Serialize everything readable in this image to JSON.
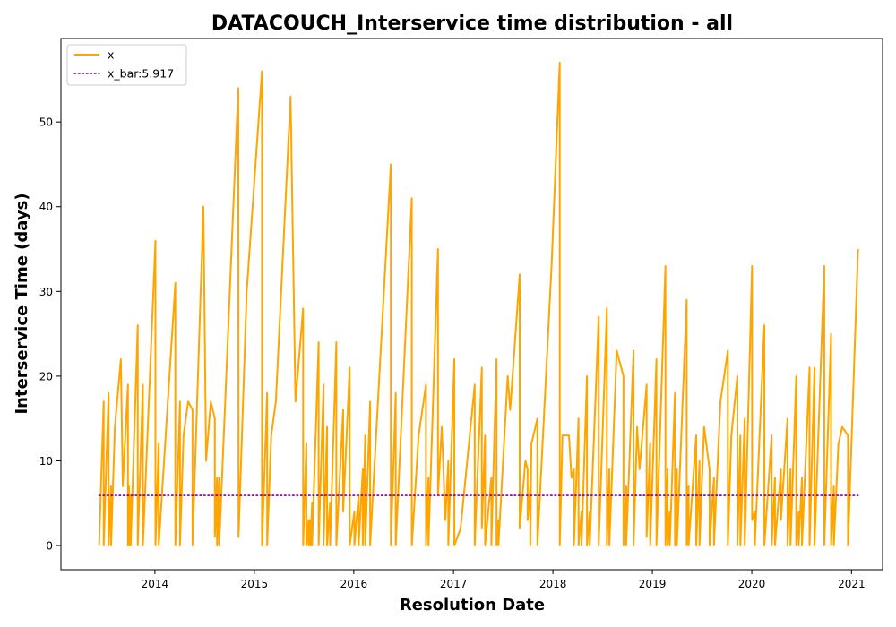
{
  "chart_data": {
    "type": "line",
    "title": "DATACOUCH_Interservice time distribution - all",
    "xlabel": "Resolution Date",
    "ylabel": "Interservice Time (days)",
    "xlim": [
      "2013-01-21",
      "2021-04-25"
    ],
    "ylim": [
      -2.85,
      59.85
    ],
    "x_ticks": [
      "2014",
      "2015",
      "2016",
      "2017",
      "2018",
      "2019",
      "2020",
      "2021"
    ],
    "y_ticks": [
      0,
      10,
      20,
      30,
      40,
      50
    ],
    "legend": {
      "position": "upper-left",
      "entries": [
        "x",
        "x_bar:5.917"
      ]
    },
    "colors": {
      "x": "#FFA500",
      "x_bar": "#800080"
    },
    "grid": false,
    "series": [
      {
        "name": "x",
        "style": "solid",
        "points": [
          [
            "2013-06-10",
            0
          ],
          [
            "2013-06-27",
            17
          ],
          [
            "2013-06-27",
            0
          ],
          [
            "2013-07-15",
            18
          ],
          [
            "2013-07-15",
            0
          ],
          [
            "2013-07-24",
            7
          ],
          [
            "2013-07-24",
            0
          ],
          [
            "2013-08-07",
            14
          ],
          [
            "2013-08-29",
            22
          ],
          [
            "2013-09-05",
            7
          ],
          [
            "2013-09-24",
            19
          ],
          [
            "2013-09-24",
            0
          ],
          [
            "2013-09-28",
            7
          ],
          [
            "2013-09-28",
            0
          ],
          [
            "2013-10-04",
            6
          ],
          [
            "2013-10-04",
            0
          ],
          [
            "2013-10-30",
            26
          ],
          [
            "2013-10-30",
            0
          ],
          [
            "2013-11-18",
            19
          ],
          [
            "2013-11-18",
            0
          ],
          [
            "2014-01-03",
            36
          ],
          [
            "2014-01-03",
            0
          ],
          [
            "2014-01-15",
            12
          ],
          [
            "2014-01-15",
            0
          ],
          [
            "2014-03-17",
            31
          ],
          [
            "2014-03-17",
            0
          ],
          [
            "2014-04-03",
            17
          ],
          [
            "2014-04-03",
            0
          ],
          [
            "2014-04-16",
            13
          ],
          [
            "2014-05-03",
            17
          ],
          [
            "2014-05-19",
            16
          ],
          [
            "2014-05-19",
            0
          ],
          [
            "2014-06-28",
            40
          ],
          [
            "2014-07-08",
            10
          ],
          [
            "2014-07-25",
            17
          ],
          [
            "2014-08-09",
            15
          ],
          [
            "2014-08-09",
            1
          ],
          [
            "2014-08-17",
            8
          ],
          [
            "2014-08-17",
            0
          ],
          [
            "2014-08-25",
            8
          ],
          [
            "2014-08-25",
            0
          ],
          [
            "2014-11-03",
            54
          ],
          [
            "2014-11-04",
            1
          ],
          [
            "2014-12-04",
            30
          ],
          [
            "2015-01-29",
            56
          ],
          [
            "2015-01-29",
            0
          ],
          [
            "2015-02-17",
            18
          ],
          [
            "2015-02-17",
            0
          ],
          [
            "2015-03-04",
            13
          ],
          [
            "2015-03-21",
            17
          ],
          [
            "2015-05-14",
            53
          ],
          [
            "2015-06-01",
            17
          ],
          [
            "2015-06-29",
            28
          ],
          [
            "2015-06-29",
            0
          ],
          [
            "2015-07-11",
            12
          ],
          [
            "2015-07-11",
            0
          ],
          [
            "2015-07-19",
            3
          ],
          [
            "2015-07-19",
            0
          ],
          [
            "2015-07-26",
            3
          ],
          [
            "2015-07-26",
            0
          ],
          [
            "2015-08-01",
            5
          ],
          [
            "2015-08-01",
            0
          ],
          [
            "2015-08-25",
            24
          ],
          [
            "2015-08-25",
            0
          ],
          [
            "2015-09-12",
            19
          ],
          [
            "2015-09-12",
            0
          ],
          [
            "2015-09-25",
            14
          ],
          [
            "2015-09-25",
            0
          ],
          [
            "2015-10-06",
            5
          ],
          [
            "2015-10-06",
            0
          ],
          [
            "2015-10-29",
            24
          ],
          [
            "2015-10-29",
            0
          ],
          [
            "2015-11-23",
            16
          ],
          [
            "2015-11-23",
            4
          ],
          [
            "2015-12-17",
            21
          ],
          [
            "2015-12-17",
            0
          ],
          [
            "2016-01-03",
            4
          ],
          [
            "2016-01-03",
            0
          ],
          [
            "2016-01-19",
            6
          ],
          [
            "2016-01-19",
            0
          ],
          [
            "2016-02-03",
            9
          ],
          [
            "2016-02-03",
            0
          ],
          [
            "2016-02-12",
            13
          ],
          [
            "2016-02-12",
            0
          ],
          [
            "2016-03-01",
            17
          ],
          [
            "2016-03-01",
            0
          ],
          [
            "2016-05-16",
            45
          ],
          [
            "2016-05-16",
            0
          ],
          [
            "2016-06-03",
            18
          ],
          [
            "2016-06-03",
            0
          ],
          [
            "2016-08-01",
            41
          ],
          [
            "2016-08-01",
            0
          ],
          [
            "2016-08-26",
            13
          ],
          [
            "2016-09-22",
            19
          ],
          [
            "2016-09-22",
            0
          ],
          [
            "2016-10-01",
            8
          ],
          [
            "2016-10-01",
            0
          ],
          [
            "2016-11-05",
            35
          ],
          [
            "2016-11-05",
            6
          ],
          [
            "2016-11-19",
            14
          ],
          [
            "2016-12-02",
            3
          ],
          [
            "2016-12-13",
            10
          ],
          [
            "2016-12-13",
            0
          ],
          [
            "2017-01-04",
            22
          ],
          [
            "2017-01-04",
            0
          ],
          [
            "2017-01-27",
            2
          ],
          [
            "2017-03-20",
            19
          ],
          [
            "2017-03-20",
            0
          ],
          [
            "2017-04-15",
            21
          ],
          [
            "2017-04-15",
            2
          ],
          [
            "2017-04-27",
            13
          ],
          [
            "2017-04-27",
            0
          ],
          [
            "2017-05-20",
            8
          ],
          [
            "2017-05-20",
            0
          ],
          [
            "2017-06-08",
            22
          ],
          [
            "2017-06-08",
            0
          ],
          [
            "2017-06-15",
            3
          ],
          [
            "2017-06-15",
            0
          ],
          [
            "2017-07-19",
            20
          ],
          [
            "2017-07-28",
            16
          ],
          [
            "2017-09-01",
            32
          ],
          [
            "2017-09-01",
            2
          ],
          [
            "2017-09-22",
            10
          ],
          [
            "2017-09-30",
            9
          ],
          [
            "2017-09-30",
            3
          ],
          [
            "2017-10-10",
            7
          ],
          [
            "2017-10-10",
            0
          ],
          [
            "2017-10-14",
            12
          ],
          [
            "2017-11-05",
            15
          ],
          [
            "2017-11-05",
            0
          ],
          [
            "2017-12-27",
            33
          ],
          [
            "2018-01-26",
            57
          ],
          [
            "2018-01-26",
            0
          ],
          [
            "2018-02-05",
            13
          ],
          [
            "2018-03-01",
            13
          ],
          [
            "2018-03-10",
            8
          ],
          [
            "2018-03-19",
            9
          ],
          [
            "2018-03-19",
            0
          ],
          [
            "2018-04-05",
            15
          ],
          [
            "2018-04-05",
            0
          ],
          [
            "2018-04-16",
            4
          ],
          [
            "2018-04-16",
            0
          ],
          [
            "2018-05-06",
            20
          ],
          [
            "2018-05-06",
            0
          ],
          [
            "2018-05-16",
            4
          ],
          [
            "2018-05-16",
            0
          ],
          [
            "2018-06-18",
            27
          ],
          [
            "2018-06-18",
            0
          ],
          [
            "2018-07-18",
            28
          ],
          [
            "2018-07-18",
            0
          ],
          [
            "2018-07-27",
            9
          ],
          [
            "2018-07-27",
            0
          ],
          [
            "2018-08-23",
            23
          ],
          [
            "2018-09-17",
            20
          ],
          [
            "2018-09-17",
            0
          ],
          [
            "2018-09-27",
            7
          ],
          [
            "2018-09-27",
            0
          ],
          [
            "2018-10-24",
            23
          ],
          [
            "2018-10-24",
            0
          ],
          [
            "2018-11-06",
            14
          ],
          [
            "2018-11-15",
            9
          ],
          [
            "2018-12-11",
            19
          ],
          [
            "2018-12-11",
            1
          ],
          [
            "2018-12-24",
            12
          ],
          [
            "2018-12-24",
            0
          ],
          [
            "2019-01-16",
            22
          ],
          [
            "2019-01-16",
            0
          ],
          [
            "2019-02-18",
            33
          ],
          [
            "2019-02-18",
            0
          ],
          [
            "2019-02-26",
            9
          ],
          [
            "2019-02-26",
            0
          ],
          [
            "2019-03-06",
            4
          ],
          [
            "2019-03-06",
            0
          ],
          [
            "2019-03-25",
            18
          ],
          [
            "2019-03-25",
            0
          ],
          [
            "2019-04-01",
            9
          ],
          [
            "2019-04-01",
            0
          ],
          [
            "2019-05-07",
            29
          ],
          [
            "2019-05-07",
            0
          ],
          [
            "2019-05-14",
            7
          ],
          [
            "2019-05-14",
            0
          ],
          [
            "2019-06-11",
            13
          ],
          [
            "2019-06-11",
            0
          ],
          [
            "2019-06-23",
            10
          ],
          [
            "2019-06-23",
            0
          ],
          [
            "2019-07-10",
            14
          ],
          [
            "2019-07-30",
            9
          ],
          [
            "2019-07-30",
            0
          ],
          [
            "2019-08-15",
            8
          ],
          [
            "2019-08-15",
            0
          ],
          [
            "2019-09-08",
            17
          ],
          [
            "2019-10-05",
            23
          ],
          [
            "2019-10-05",
            0
          ],
          [
            "2019-10-18",
            13
          ],
          [
            "2019-11-09",
            20
          ],
          [
            "2019-11-09",
            0
          ],
          [
            "2019-11-20",
            13
          ],
          [
            "2019-11-20",
            0
          ],
          [
            "2019-12-06",
            15
          ],
          [
            "2019-12-06",
            0
          ],
          [
            "2020-01-02",
            33
          ],
          [
            "2020-01-02",
            3
          ],
          [
            "2020-01-12",
            4
          ],
          [
            "2020-01-12",
            0
          ],
          [
            "2020-02-16",
            26
          ],
          [
            "2020-02-16",
            0
          ],
          [
            "2020-03-14",
            13
          ],
          [
            "2020-03-14",
            0
          ],
          [
            "2020-03-26",
            8
          ],
          [
            "2020-03-26",
            0
          ],
          [
            "2020-04-17",
            9
          ],
          [
            "2020-04-17",
            3
          ],
          [
            "2020-05-11",
            15
          ],
          [
            "2020-05-11",
            0
          ],
          [
            "2020-05-22",
            9
          ],
          [
            "2020-05-22",
            0
          ],
          [
            "2020-06-12",
            20
          ],
          [
            "2020-06-12",
            0
          ],
          [
            "2020-06-21",
            4
          ],
          [
            "2020-06-21",
            0
          ],
          [
            "2020-07-03",
            8
          ],
          [
            "2020-07-03",
            0
          ],
          [
            "2020-07-31",
            21
          ],
          [
            "2020-07-31",
            0
          ],
          [
            "2020-08-18",
            21
          ],
          [
            "2020-08-18",
            0
          ],
          [
            "2020-09-23",
            33
          ],
          [
            "2020-09-23",
            0
          ],
          [
            "2020-10-18",
            25
          ],
          [
            "2020-10-18",
            0
          ],
          [
            "2020-10-28",
            7
          ],
          [
            "2020-10-28",
            0
          ],
          [
            "2020-11-14",
            12
          ],
          [
            "2020-11-28",
            14
          ],
          [
            "2020-12-19",
            13
          ],
          [
            "2020-12-19",
            0
          ],
          [
            "2021-01-25",
            35
          ]
        ]
      },
      {
        "name": "x_bar:5.917",
        "style": "dotted",
        "points": [
          [
            "2013-06-10",
            5.917
          ],
          [
            "2021-01-25",
            5.917
          ]
        ]
      }
    ]
  }
}
